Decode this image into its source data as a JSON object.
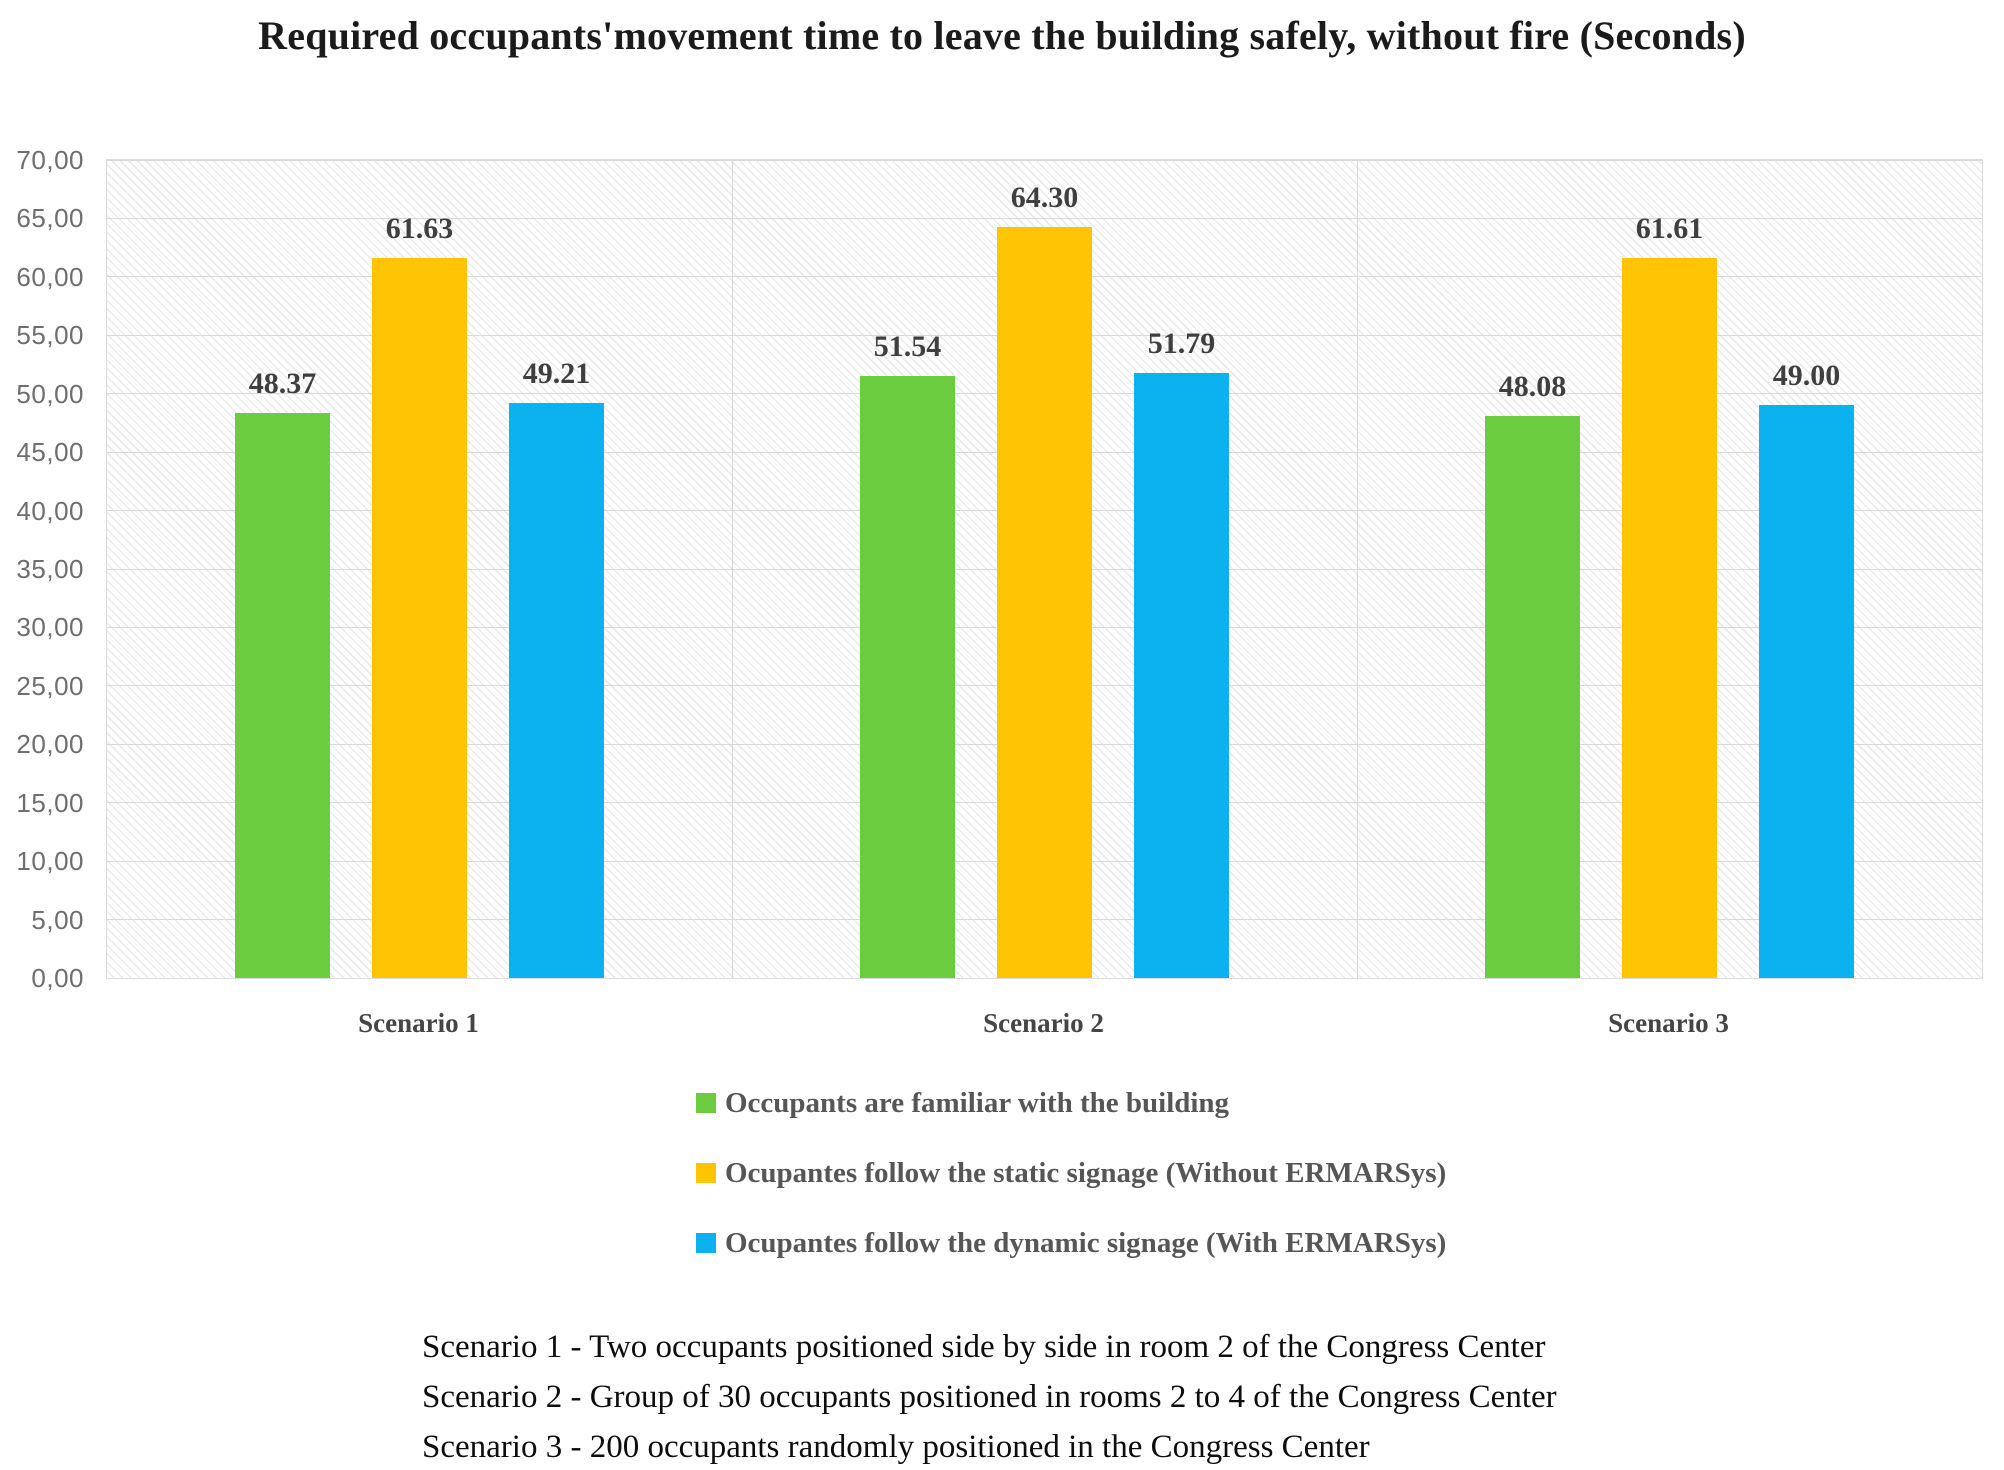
{
  "title": "Required occupants'movement time to leave the building safely, without fire (Seconds)",
  "chart_data": {
    "type": "bar",
    "title": "Required occupants'movement time to leave the building safely, without fire (Seconds)",
    "categories": [
      "Scenario 1",
      "Scenario 2",
      "Scenario 3"
    ],
    "series": [
      {
        "name": "Occupants are familiar with the building",
        "color": "#6BCC40",
        "values": [
          48.37,
          51.54,
          48.08
        ],
        "value_labels": [
          "48.37",
          "51.54",
          "48.08"
        ]
      },
      {
        "name": "Ocupantes follow the static signage (Without ERMARSys)",
        "color": "#FFC403",
        "values": [
          61.63,
          64.3,
          61.61
        ],
        "value_labels": [
          "61.63",
          "64.30",
          "61.61"
        ]
      },
      {
        "name": "Ocupantes follow the dynamic signage (With ERMARSys)",
        "color": "#0CB2EF",
        "values": [
          49.21,
          51.79,
          49.0
        ],
        "value_labels": [
          "49.21",
          "51.79",
          "49.00"
        ]
      }
    ],
    "xlabel": "",
    "ylabel": "",
    "ylim": [
      0,
      70
    ],
    "ytick_step": 5,
    "ytick_labels": [
      "0,00",
      "5,00",
      "10,00",
      "15,00",
      "20,00",
      "25,00",
      "30,00",
      "35,00",
      "40,00",
      "45,00",
      "50,00",
      "55,00",
      "60,00",
      "65,00",
      "70,00"
    ],
    "grid": true,
    "plot_background": "diagonal-hatch",
    "legend_position": "bottom"
  },
  "footnotes": [
    "Scenario 1 - Two occupants positioned side by side in room 2 of the Congress Center",
    "Scenario 2 - Group of 30 occupants positioned in rooms 2 to 4 of the Congress Center",
    "Scenario 3 - 200 occupants randomly positioned in the Congress Center"
  ],
  "colors": {
    "gridline": "#d9d9d9",
    "hatch_line": "#ebebeb",
    "axis_text": "#6e6e6e",
    "value_text": "#3f3f3f",
    "title_text": "#1b1b1b",
    "footnote_text": "#0d0d0d"
  }
}
